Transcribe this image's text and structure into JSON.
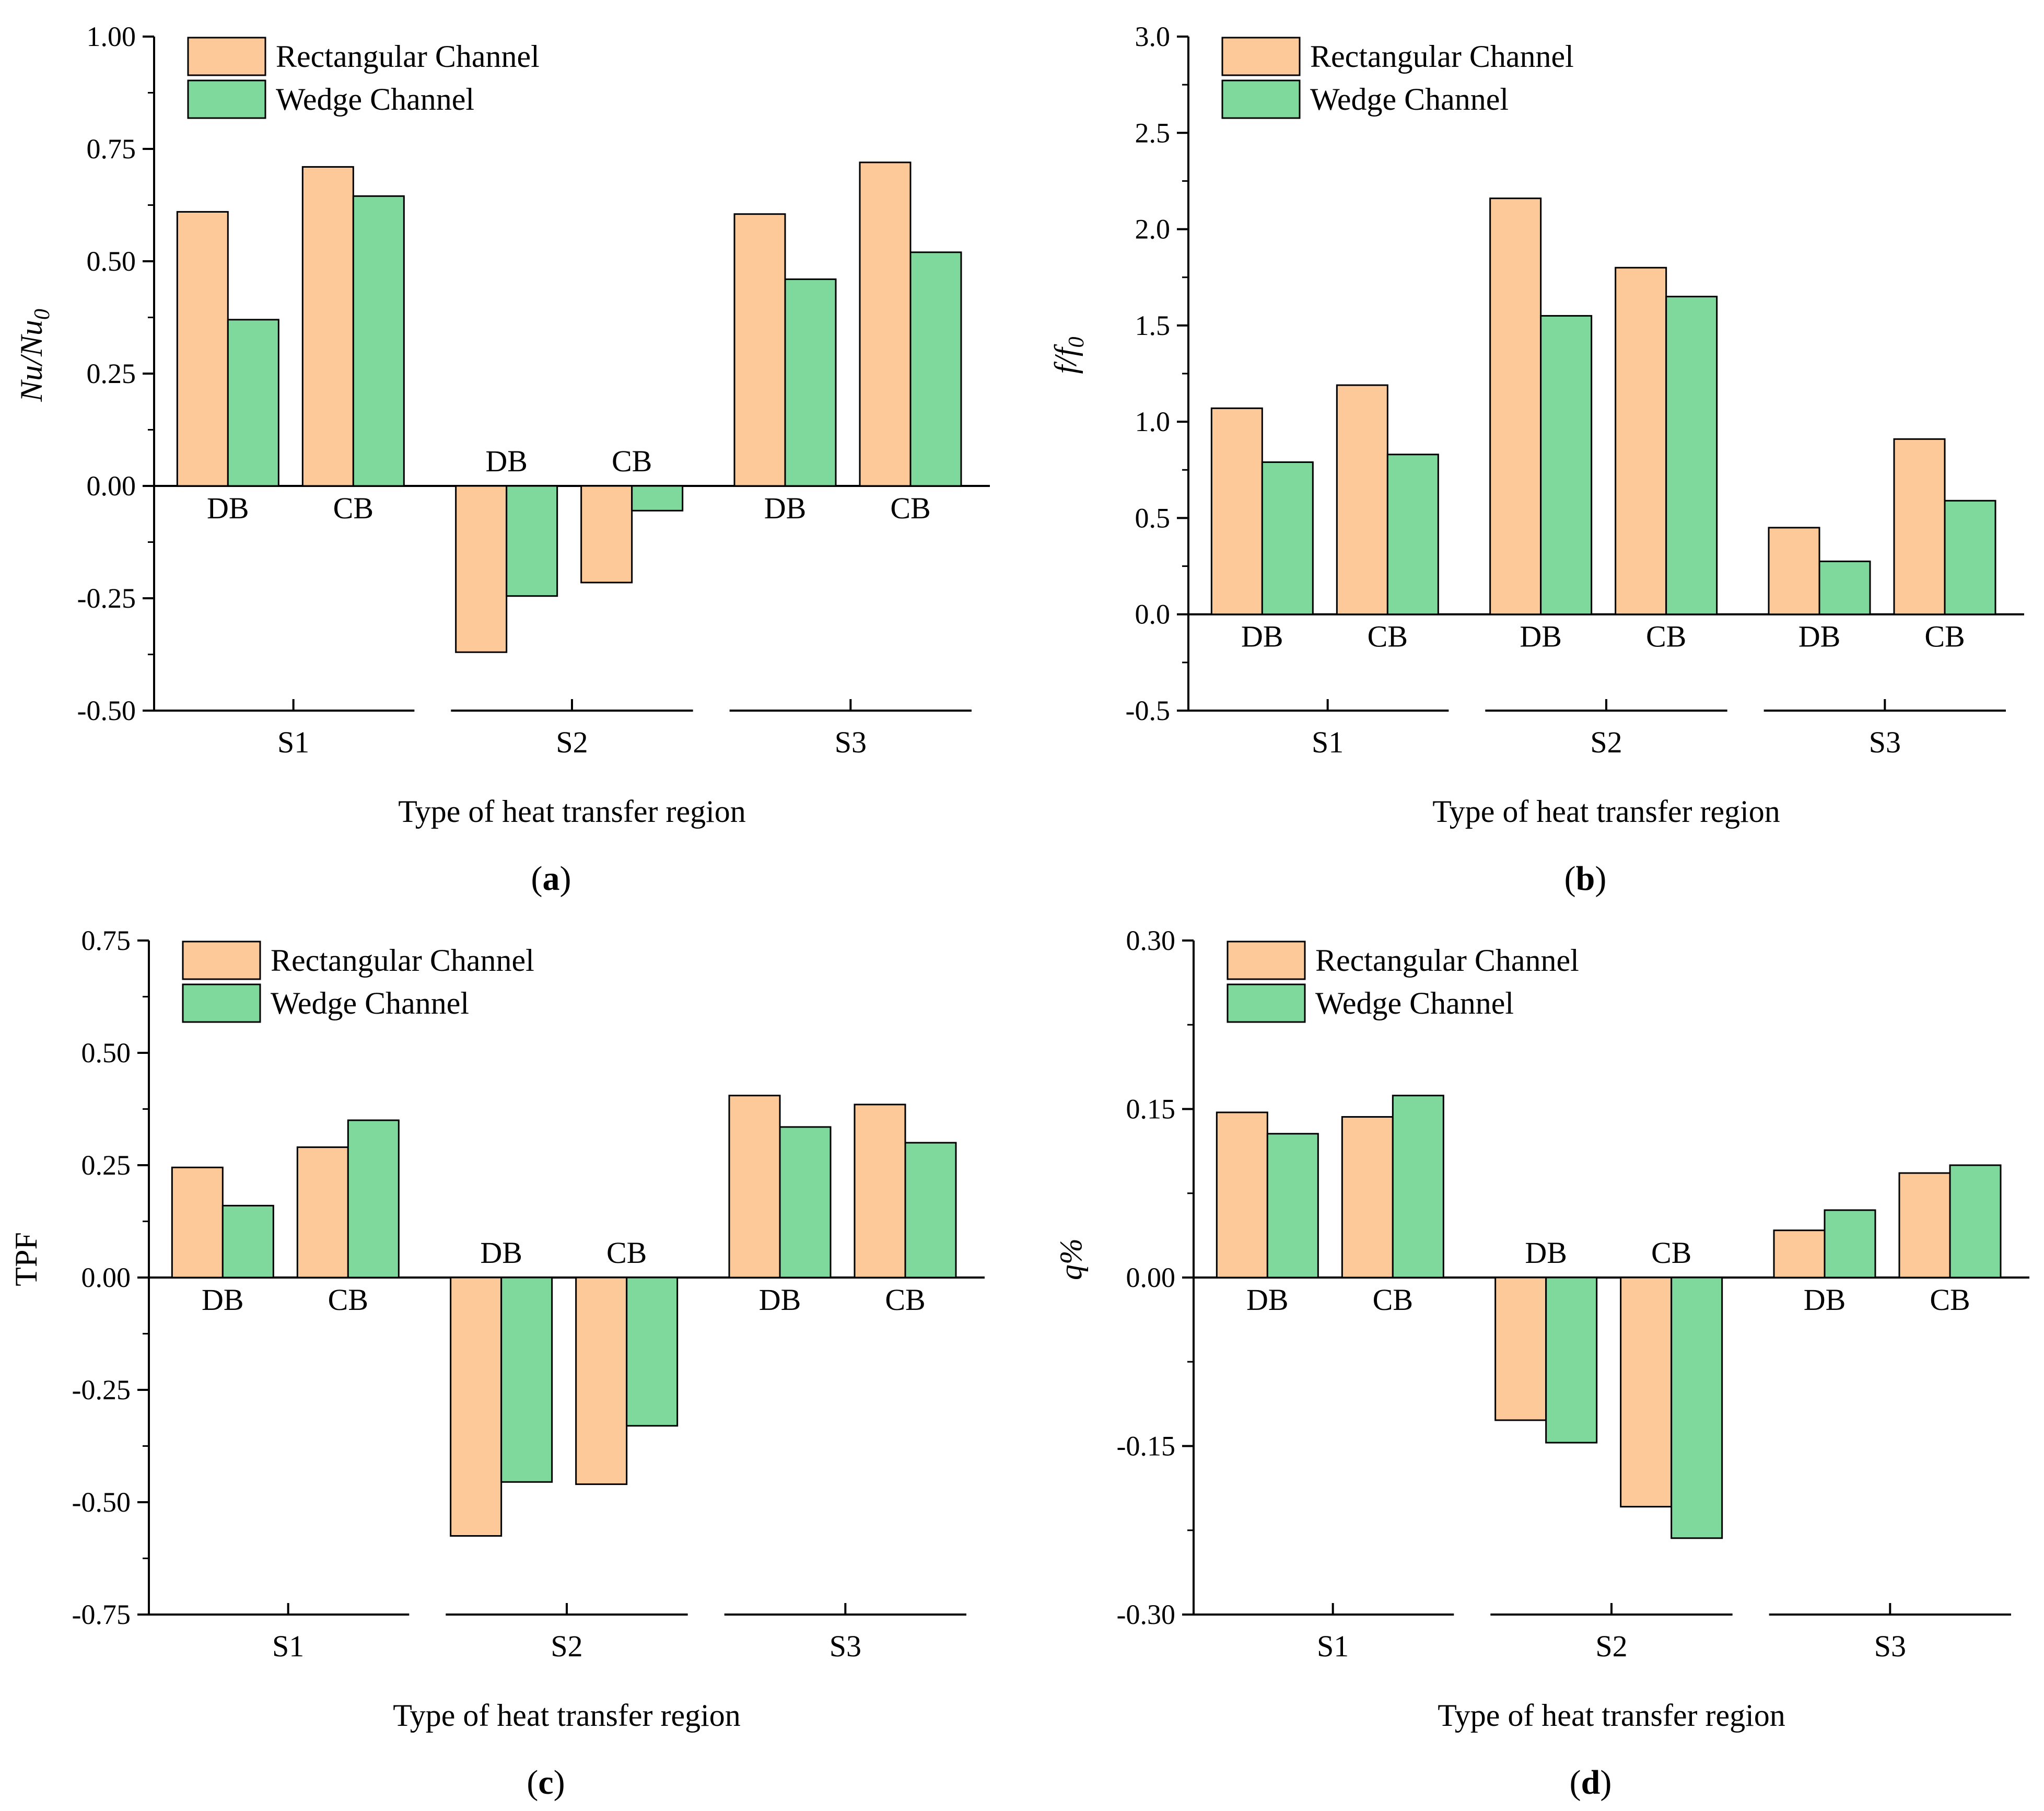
{
  "colors": {
    "rect": "#FDC998",
    "wedge": "#7FD89C",
    "stroke": "#000000"
  },
  "legend": {
    "series1": "Rectangular Channel",
    "series2": "Wedge Channel"
  },
  "chart_data": [
    {
      "id": "a",
      "type": "bar",
      "panel_label": "a",
      "ylabel": "Nu/Nu",
      "ylabel_sub": "0",
      "xlabel": "Type of heat transfer region",
      "ylim": [
        -0.5,
        1.0
      ],
      "yticks": [
        -0.5,
        -0.25,
        0,
        0.25,
        0.5,
        0.75,
        1.0
      ],
      "ytick_labels": [
        "-0.50",
        "-0.25",
        "0.00",
        "0.25",
        "0.50",
        "0.75",
        "1.00"
      ],
      "groups": [
        "S1",
        "S2",
        "S3"
      ],
      "categories": [
        "DB",
        "CB",
        "DB",
        "CB",
        "DB",
        "CB"
      ],
      "series": [
        {
          "name": "Rectangular Channel",
          "values": [
            0.61,
            0.71,
            -0.37,
            -0.215,
            0.605,
            0.72
          ]
        },
        {
          "name": "Wedge Channel",
          "values": [
            0.37,
            0.645,
            -0.245,
            -0.055,
            0.46,
            0.52
          ]
        }
      ]
    },
    {
      "id": "b",
      "type": "bar",
      "panel_label": "b",
      "ylabel": "f/f",
      "ylabel_sub": "0",
      "xlabel": "Type of heat transfer region",
      "ylim": [
        -0.5,
        3.0
      ],
      "yticks": [
        -0.5,
        0,
        0.5,
        1.0,
        1.5,
        2.0,
        2.5,
        3.0
      ],
      "ytick_labels": [
        "-0.5",
        "0.0",
        "0.5",
        "1.0",
        "1.5",
        "2.0",
        "2.5",
        "3.0"
      ],
      "groups": [
        "S1",
        "S2",
        "S3"
      ],
      "categories": [
        "DB",
        "CB",
        "DB",
        "CB",
        "DB",
        "CB"
      ],
      "series": [
        {
          "name": "Rectangular Channel",
          "values": [
            1.07,
            1.19,
            2.16,
            1.8,
            0.45,
            0.91
          ]
        },
        {
          "name": "Wedge Channel",
          "values": [
            0.79,
            0.83,
            1.55,
            1.65,
            0.275,
            0.59
          ]
        }
      ]
    },
    {
      "id": "c",
      "type": "bar",
      "panel_label": "c",
      "ylabel": "TPF",
      "ylabel_sub": "",
      "xlabel": "Type of heat transfer region",
      "ylim": [
        -0.75,
        0.75
      ],
      "yticks": [
        -0.75,
        -0.5,
        -0.25,
        0,
        0.25,
        0.5,
        0.75
      ],
      "ytick_labels": [
        "-0.75",
        "-0.50",
        "-0.25",
        "0.00",
        "0.25",
        "0.50",
        "0.75"
      ],
      "groups": [
        "S1",
        "S2",
        "S3"
      ],
      "categories": [
        "DB",
        "CB",
        "DB",
        "CB",
        "DB",
        "CB"
      ],
      "series": [
        {
          "name": "Rectangular Channel",
          "values": [
            0.245,
            0.29,
            -0.575,
            -0.46,
            0.405,
            0.385
          ]
        },
        {
          "name": "Wedge Channel",
          "values": [
            0.16,
            0.35,
            -0.455,
            -0.33,
            0.335,
            0.3
          ]
        }
      ]
    },
    {
      "id": "d",
      "type": "bar",
      "panel_label": "d",
      "ylabel": "q%",
      "ylabel_sub": "",
      "xlabel": "Type of heat transfer region",
      "ylim": [
        -0.3,
        0.3
      ],
      "yticks": [
        -0.3,
        -0.15,
        0,
        0.15,
        0.3
      ],
      "ytick_labels": [
        "-0.30",
        "-0.15",
        "0.00",
        "0.15",
        "0.30"
      ],
      "groups": [
        "S1",
        "S2",
        "S3"
      ],
      "categories": [
        "DB",
        "CB",
        "DB",
        "CB",
        "DB",
        "CB"
      ],
      "series": [
        {
          "name": "Rectangular Channel",
          "values": [
            0.147,
            0.143,
            -0.127,
            -0.204,
            0.042,
            0.093
          ]
        },
        {
          "name": "Wedge Channel",
          "values": [
            0.128,
            0.162,
            -0.147,
            -0.232,
            0.06,
            0.1
          ]
        }
      ]
    }
  ]
}
